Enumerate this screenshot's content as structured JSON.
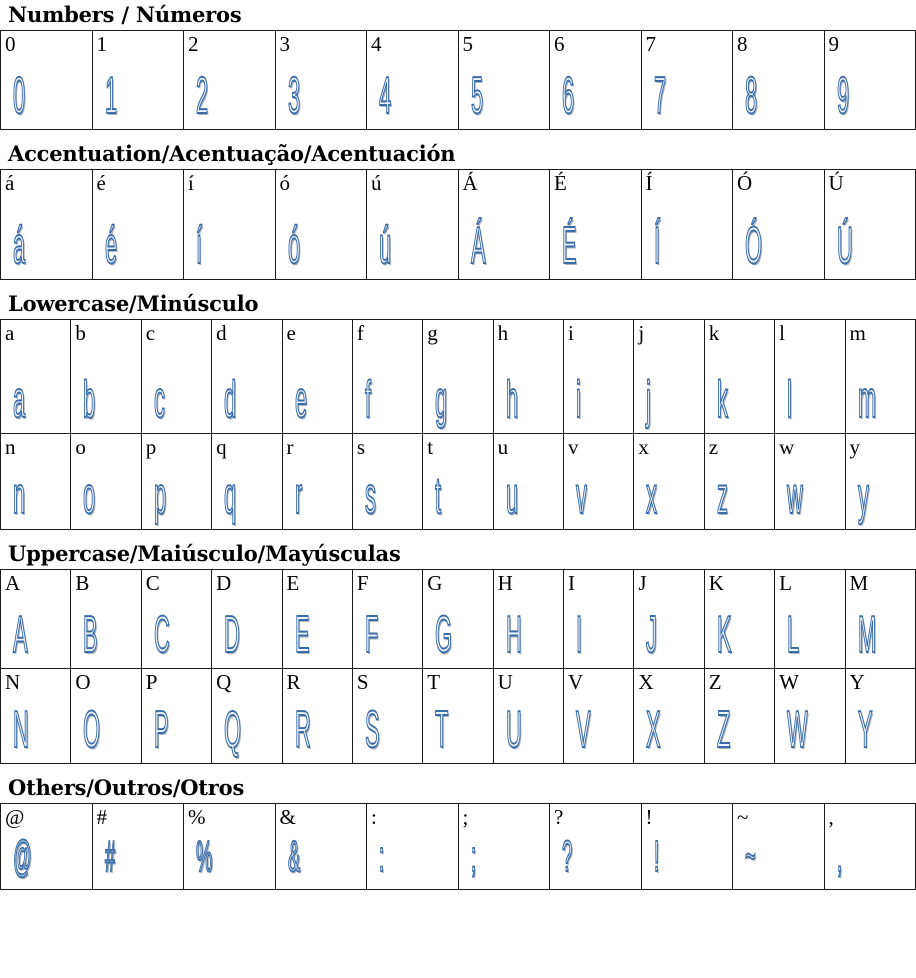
{
  "colors": {
    "glyph_blue": "#3a6ca8",
    "glyph_shadow": "#aab3bf",
    "table_border": "#1a1a1a",
    "label_color": "#000000",
    "background": "#ffffff"
  },
  "sections": [
    {
      "id": "numbers",
      "title": "Numbers / Números",
      "rows": [
        [
          "0",
          "1",
          "2",
          "3",
          "4",
          "5",
          "6",
          "7",
          "8",
          "9"
        ]
      ]
    },
    {
      "id": "accentuation",
      "title": "Accentuation/Acentuação/Acentuación",
      "rows": [
        [
          "á",
          "é",
          "í",
          "ó",
          "ú",
          "Á",
          "É",
          "Í",
          "Ó",
          "Ú"
        ]
      ]
    },
    {
      "id": "lowercase",
      "title": "Lowercase/Minúsculo",
      "rows": [
        [
          "a",
          "b",
          "c",
          "d",
          "e",
          "f",
          "g",
          "h",
          "i",
          "j",
          "k",
          "l",
          "m"
        ],
        [
          "n",
          "o",
          "p",
          "q",
          "r",
          "s",
          "t",
          "u",
          "v",
          "x",
          "z",
          "w",
          "y"
        ]
      ]
    },
    {
      "id": "uppercase",
      "title": "Uppercase/Maiúsculo/Mayúsculas",
      "rows": [
        [
          "A",
          "B",
          "C",
          "D",
          "E",
          "F",
          "G",
          "H",
          "I",
          "J",
          "K",
          "L",
          "M"
        ],
        [
          "N",
          "O",
          "P",
          "Q",
          "R",
          "S",
          "T",
          "U",
          "V",
          "X",
          "Z",
          "W",
          "Y"
        ]
      ]
    },
    {
      "id": "others",
      "title": "Others/Outros/Otros",
      "rows": [
        [
          "@",
          "#",
          "%",
          "&",
          ":",
          ";",
          "?",
          "!",
          "~",
          ","
        ]
      ]
    }
  ]
}
